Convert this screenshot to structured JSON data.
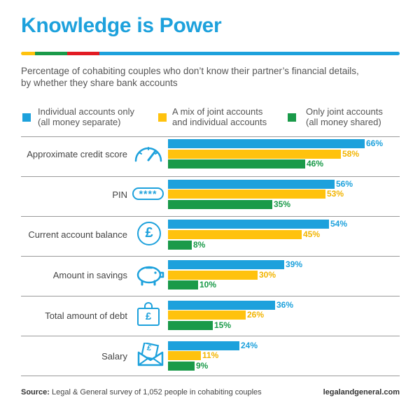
{
  "header": {
    "title": "Knowledge is Power",
    "subtitle_line1": "Percentage of cohabiting couples who don’t know their partner’s financial details,",
    "subtitle_line2": "by whether they share bank accounts"
  },
  "stripe_colors": [
    "#ffc20e",
    "#1a9a49",
    "#e21b23",
    "#1da1dc"
  ],
  "colors": {
    "individual": "#1da1dc",
    "mixed": "#ffc20e",
    "joint": "#1a9a49"
  },
  "chart_data": {
    "type": "bar",
    "orientation": "horizontal",
    "title": "Knowledge is Power",
    "subtitle": "Percentage of cohabiting couples who don’t know their partner’s financial details, by whether they share bank accounts",
    "categories": [
      "Approximate credit score",
      "PIN",
      "Current account balance",
      "Amount in savings",
      "Total amount of debt",
      "Salary"
    ],
    "series": [
      {
        "name": "Individual accounts only (all money separate)",
        "values": [
          66,
          56,
          54,
          39,
          36,
          24
        ]
      },
      {
        "name": "A mix of joint accounts and individual accounts",
        "values": [
          58,
          53,
          45,
          30,
          26,
          11
        ]
      },
      {
        "name": "Only joint accounts (all money shared)",
        "values": [
          46,
          35,
          8,
          10,
          15,
          9
        ]
      }
    ],
    "value_suffix": "%",
    "xlim": [
      0,
      100
    ],
    "legend_position": "top",
    "grid": false
  },
  "legend": [
    {
      "line1": "Individual accounts only",
      "line2": "(all money separate)"
    },
    {
      "line1": "A mix of joint accounts",
      "line2": "and individual accounts"
    },
    {
      "line1": "Only joint accounts",
      "line2": "(all money shared)"
    }
  ],
  "icons": [
    {
      "name": "speedometer-icon"
    },
    {
      "name": "pin-code-icon",
      "text": "****"
    },
    {
      "name": "pound-coin-icon",
      "text": "£"
    },
    {
      "name": "piggy-bank-icon"
    },
    {
      "name": "pound-weight-icon",
      "text": "£"
    },
    {
      "name": "pay-envelope-icon",
      "text": "£"
    }
  ],
  "footer": {
    "source_label": "Source:",
    "source_text": " Legal & General survey of 1,052 people in cohabiting couples",
    "website": "legalandgeneral.com"
  }
}
